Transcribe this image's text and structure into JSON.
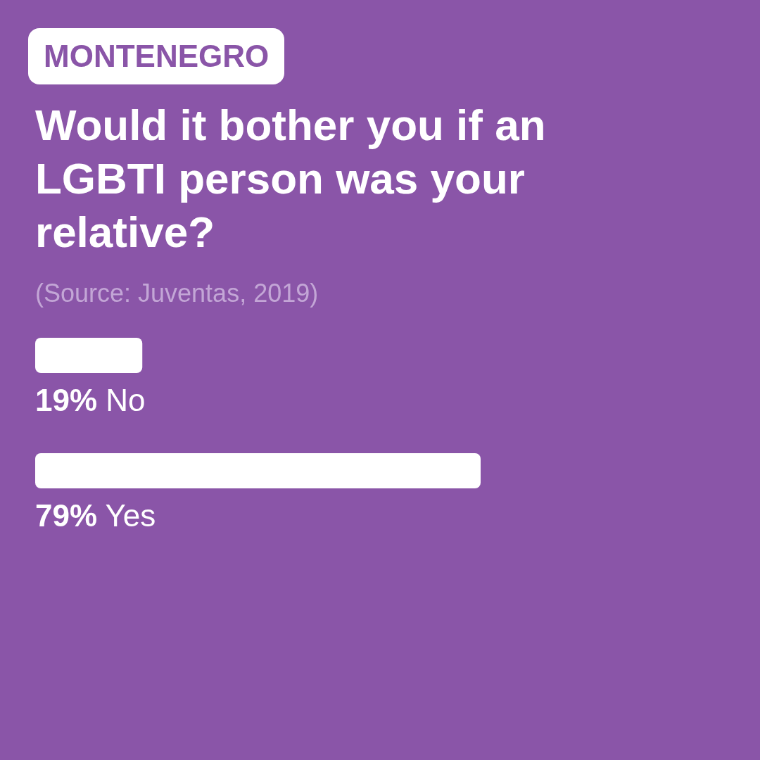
{
  "chart_data": {
    "type": "bar",
    "orientation": "horizontal",
    "subtitle": "MONTENEGRO",
    "title": "Would it bother you if an LGBTI person was your relative?",
    "annotations": [
      "(Source: Juventas, 2019)"
    ],
    "categories": [
      "No",
      "Yes"
    ],
    "values": [
      19,
      79
    ],
    "value_labels": [
      "19%",
      "79%"
    ],
    "color": "#ffffff",
    "tick_labels": false,
    "grid": false,
    "legend": false
  }
}
